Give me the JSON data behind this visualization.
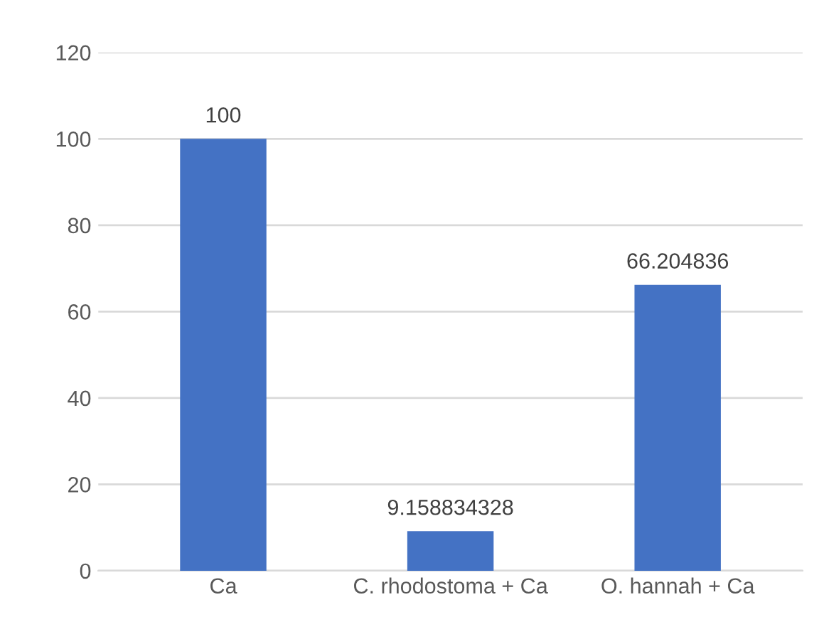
{
  "chart_data": {
    "type": "bar",
    "categories": [
      "Ca",
      "C. rhodostoma + Ca",
      "O. hannah + Ca"
    ],
    "values": [
      100,
      9.158834328,
      66.204836
    ],
    "color": "#4472c4",
    "ylim": [
      0,
      120
    ],
    "yticks": [
      0,
      20,
      40,
      60,
      80,
      100,
      120
    ],
    "grid": "y",
    "data_labels": true
  }
}
